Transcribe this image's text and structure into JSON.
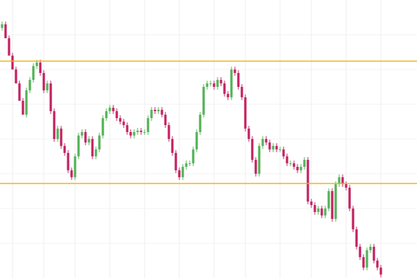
{
  "chart_data": {
    "type": "candlestick",
    "xlim": [
      -0.6,
      119.4
    ],
    "ylim": [
      0,
      400
    ],
    "xticks": [
      3,
      12,
      21,
      31,
      41,
      51,
      61,
      70,
      80,
      89,
      99,
      109
    ],
    "yticks": [
      50,
      100,
      150,
      200,
      250,
      300,
      350
    ],
    "grid": true,
    "up_color": "#4caf50",
    "down_color": "#c2185b",
    "hlines": [
      {
        "value": 312,
        "color": "#f0b400"
      },
      {
        "value": 136,
        "color": "#f0b400"
      }
    ],
    "open": [
      360,
      365,
      345,
      320,
      300,
      280,
      255,
      235,
      270,
      285,
      305,
      310,
      295,
      270,
      280,
      240,
      200,
      215,
      190,
      180,
      155,
      145,
      175,
      205,
      210,
      195,
      200,
      175,
      185,
      205,
      230,
      240,
      245,
      240,
      230,
      225,
      220,
      210,
      205,
      210,
      212,
      210,
      210,
      230,
      242,
      240,
      242,
      235,
      220,
      200,
      180,
      155,
      145,
      160,
      165,
      165,
      185,
      210,
      235,
      275,
      280,
      280,
      275,
      285,
      280,
      265,
      260,
      300,
      295,
      275,
      260,
      215,
      200,
      170,
      150,
      190,
      200,
      195,
      185,
      190,
      185,
      185,
      175,
      165,
      165,
      160,
      155,
      160,
      170,
      110,
      105,
      95,
      100,
      90,
      100,
      125,
      85,
      135,
      145,
      135,
      130,
      100,
      70,
      45,
      30,
      15,
      40,
      45,
      25,
      15
    ],
    "high": [
      369,
      369,
      349,
      324,
      304,
      284,
      259,
      274,
      289,
      309,
      314,
      314,
      299,
      284,
      284,
      244,
      219,
      219,
      194,
      184,
      159,
      179,
      209,
      214,
      214,
      204,
      204,
      189,
      209,
      234,
      244,
      249,
      249,
      244,
      234,
      229,
      224,
      214,
      214,
      216,
      216,
      214,
      234,
      246,
      246,
      246,
      246,
      239,
      224,
      204,
      184,
      159,
      164,
      169,
      169,
      189,
      214,
      239,
      279,
      284,
      284,
      284,
      289,
      289,
      284,
      269,
      304,
      304,
      299,
      279,
      264,
      219,
      204,
      174,
      194,
      204,
      204,
      199,
      194,
      194,
      189,
      189,
      179,
      169,
      169,
      164,
      164,
      174,
      174,
      114,
      109,
      104,
      104,
      104,
      129,
      129,
      139,
      149,
      149,
      139,
      134,
      104,
      74,
      49,
      34,
      44,
      49,
      49,
      29,
      19
    ],
    "low": [
      356,
      349,
      324,
      304,
      284,
      259,
      239,
      231,
      266,
      281,
      301,
      291,
      266,
      266,
      236,
      196,
      196,
      186,
      176,
      151,
      141,
      141,
      171,
      201,
      191,
      191,
      171,
      171,
      181,
      201,
      226,
      236,
      236,
      226,
      221,
      216,
      206,
      201,
      201,
      206,
      206,
      206,
      206,
      226,
      236,
      236,
      231,
      216,
      196,
      176,
      151,
      141,
      141,
      156,
      161,
      161,
      181,
      206,
      231,
      271,
      276,
      271,
      271,
      276,
      261,
      256,
      256,
      291,
      271,
      256,
      211,
      196,
      166,
      146,
      146,
      186,
      191,
      181,
      181,
      181,
      181,
      171,
      161,
      161,
      156,
      151,
      151,
      156,
      106,
      101,
      91,
      91,
      86,
      86,
      96,
      81,
      81,
      131,
      131,
      126,
      96,
      66,
      41,
      26,
      11,
      11,
      36,
      21,
      11,
      1
    ],
    "close": [
      365,
      345,
      320,
      300,
      280,
      255,
      235,
      270,
      285,
      305,
      310,
      295,
      270,
      280,
      240,
      200,
      215,
      190,
      180,
      155,
      145,
      175,
      205,
      210,
      195,
      200,
      175,
      185,
      205,
      230,
      240,
      245,
      240,
      230,
      225,
      220,
      210,
      205,
      210,
      212,
      210,
      210,
      230,
      242,
      240,
      242,
      235,
      220,
      200,
      180,
      155,
      145,
      160,
      165,
      165,
      185,
      210,
      235,
      275,
      280,
      280,
      275,
      285,
      280,
      265,
      260,
      300,
      295,
      275,
      260,
      215,
      200,
      170,
      150,
      190,
      200,
      195,
      185,
      190,
      185,
      185,
      175,
      165,
      165,
      160,
      155,
      160,
      170,
      110,
      105,
      95,
      100,
      90,
      100,
      125,
      85,
      135,
      145,
      135,
      130,
      100,
      70,
      45,
      30,
      15,
      40,
      45,
      25,
      15,
      5
    ]
  }
}
